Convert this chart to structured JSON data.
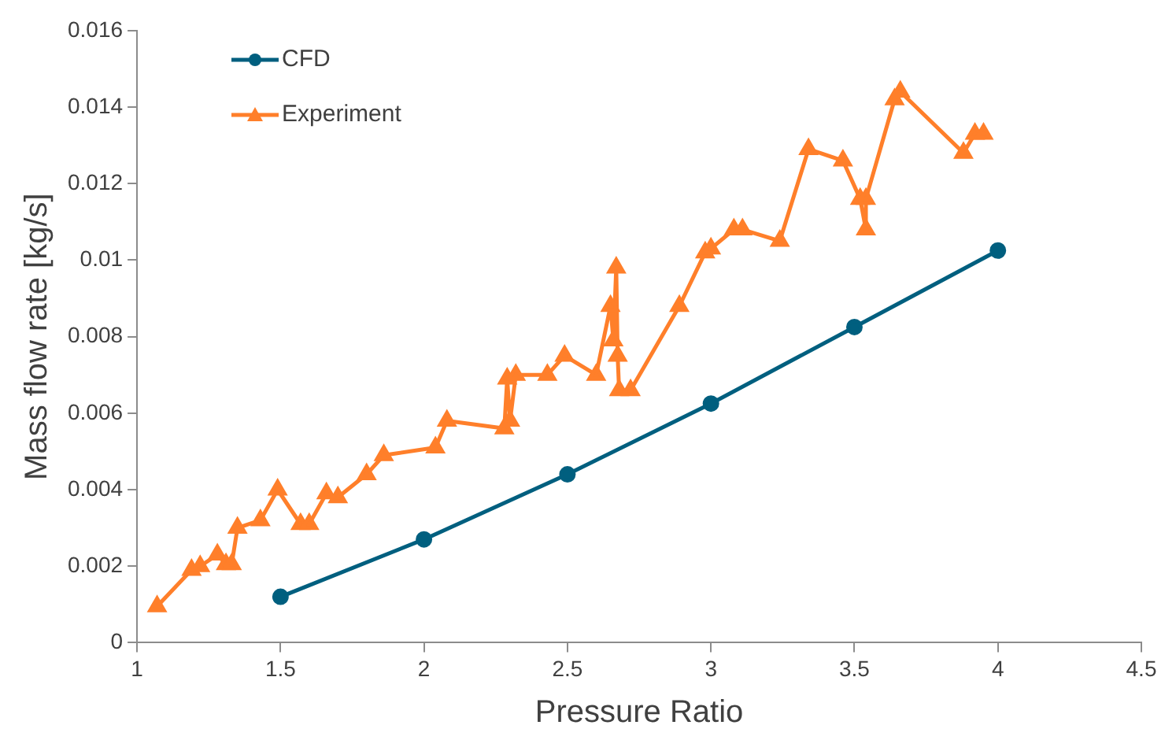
{
  "chart_data": {
    "type": "line",
    "xlabel": "Pressure Ratio",
    "ylabel": "Mass flow rate [kg/s]",
    "xlim": [
      1,
      4.5
    ],
    "xticks": [
      1,
      1.5,
      2,
      2.5,
      3,
      3.5,
      4,
      4.5
    ],
    "ylim": [
      0,
      0.016
    ],
    "yticks": [
      0,
      0.002,
      0.004,
      0.006,
      0.008,
      0.01,
      0.012,
      0.014,
      0.016
    ],
    "grid": false,
    "legend": "top left",
    "series": [
      {
        "name": "CFD",
        "color": "#005f7f",
        "marker": "circle",
        "x": [
          1.5,
          2,
          2.5,
          3,
          3.5,
          4
        ],
        "values": [
          0.0012,
          0.0027,
          0.0044,
          0.00625,
          0.00825,
          0.01025
        ]
      },
      {
        "name": "Experiment",
        "color": "#ff7f2a",
        "marker": "triangle",
        "x": [
          1.07,
          1.19,
          1.22,
          1.28,
          1.31,
          1.33,
          1.35,
          1.43,
          1.49,
          1.57,
          1.6,
          1.66,
          1.7,
          1.8,
          1.86,
          2.04,
          2.08,
          2.28,
          2.29,
          2.3,
          2.32,
          2.43,
          2.49,
          2.6,
          2.65,
          2.66,
          2.67,
          2.675,
          2.68,
          2.72,
          2.89,
          2.98,
          3,
          3.08,
          3.11,
          3.24,
          3.34,
          3.46,
          3.52,
          3.54,
          3.54,
          3.64,
          3.66,
          3.88,
          3.92,
          3.95
        ],
        "values": [
          0.00095,
          0.0019,
          0.002,
          0.0023,
          0.00205,
          0.00205,
          0.003,
          0.0032,
          0.004,
          0.0031,
          0.0031,
          0.0039,
          0.0038,
          0.0044,
          0.0049,
          0.0051,
          0.0058,
          0.0056,
          0.0069,
          0.0058,
          0.007,
          0.007,
          0.0075,
          0.007,
          0.0088,
          0.0079,
          0.0098,
          0.0075,
          0.0066,
          0.0066,
          0.0088,
          0.0102,
          0.0103,
          0.0108,
          0.0108,
          0.0105,
          0.0129,
          0.0126,
          0.0116,
          0.0108,
          0.0116,
          0.0142,
          0.0144,
          0.0128,
          0.0133,
          0.0133
        ]
      }
    ]
  }
}
